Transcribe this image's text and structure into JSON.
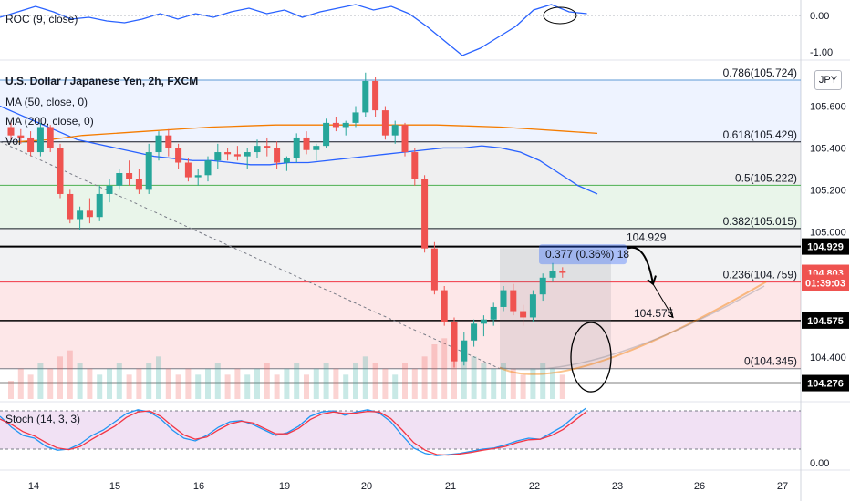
{
  "header": {
    "symbol_title": "U.S. Dollar / Japanese Yen, 2h, FXCM",
    "currency_button": "JPY"
  },
  "legends": {
    "roc": "ROC (9, close)",
    "ma50": "MA (50, close, 0)",
    "ma200": "MA (200, close, 0)",
    "vol": "Vol",
    "stoch": "Stoch (14, 3, 3)"
  },
  "colors": {
    "up": "#26a69a",
    "down": "#ef5350",
    "ma50": "#2962ff",
    "ma200": "#f57c00",
    "stoch_k": "#2196f3",
    "stoch_d": "#f23645",
    "fib_786": "#5c9ad6",
    "fib_618": "#131722",
    "fib_5": "#4caf50",
    "fib_382": "#131722",
    "fib_236": "#f23645",
    "fib_0": "#787b86"
  },
  "chart_data": [
    {
      "type": "line",
      "title": "ROC (9, close)",
      "y_ticks": [
        "0.00",
        "-1.00"
      ]
    },
    {
      "type": "candlestick",
      "title": "U.S. Dollar / Japanese Yen, 2h, FXCM",
      "ylim": [
        104.2,
        105.82
      ],
      "y_ticks": [
        "105.600",
        "105.400",
        "105.200",
        "105.000",
        "104.400"
      ],
      "x_ticks": [
        "14",
        "15",
        "16",
        "19",
        "20",
        "21",
        "22",
        "23",
        "26",
        "27"
      ],
      "fib_levels": [
        {
          "ratio": "0.786",
          "price": 105.724,
          "label": "0.786(105.724)"
        },
        {
          "ratio": "0.618",
          "price": 105.429,
          "label": "0.618(105.429)"
        },
        {
          "ratio": "0.5",
          "price": 105.222,
          "label": "0.5(105.222)"
        },
        {
          "ratio": "0.382",
          "price": 105.015,
          "label": "0.382(105.015)"
        },
        {
          "ratio": "0.236",
          "price": 104.759,
          "label": "0.236(104.759)"
        },
        {
          "ratio": "0",
          "price": 104.345,
          "label": "0(104.345)"
        }
      ],
      "horizontal_lines": [
        104.929,
        104.575,
        104.276
      ],
      "annotations": [
        {
          "text": "104.929",
          "price": 104.929
        },
        {
          "text": "104.575",
          "price": 104.575
        },
        {
          "text": "0.377 (0.36%) 18",
          "price": 104.83
        }
      ],
      "price_tags": [
        {
          "text": "104.929",
          "price": 104.929,
          "color": "#000000"
        },
        {
          "text": "104.803",
          "price": 104.803,
          "color": "#ef5350"
        },
        {
          "text": "01:39:03",
          "price": 104.755,
          "color": "#ef5350"
        },
        {
          "text": "104.575",
          "price": 104.575,
          "color": "#000000"
        },
        {
          "text": "104.276",
          "price": 104.276,
          "color": "#000000"
        }
      ],
      "candles": [
        [
          105.5,
          105.53,
          105.44,
          105.46
        ],
        [
          105.46,
          105.49,
          105.42,
          105.45
        ],
        [
          105.45,
          105.48,
          105.36,
          105.38
        ],
        [
          105.38,
          105.52,
          105.36,
          105.5
        ],
        [
          105.5,
          105.51,
          105.38,
          105.4
        ],
        [
          105.4,
          105.42,
          105.16,
          105.18
        ],
        [
          105.18,
          105.2,
          105.04,
          105.06
        ],
        [
          105.06,
          105.12,
          105.01,
          105.1
        ],
        [
          105.1,
          105.16,
          105.04,
          105.07
        ],
        [
          105.07,
          105.22,
          105.05,
          105.18
        ],
        [
          105.18,
          105.25,
          105.14,
          105.22
        ],
        [
          105.22,
          105.3,
          105.2,
          105.28
        ],
        [
          105.28,
          105.34,
          105.22,
          105.25
        ],
        [
          105.25,
          105.3,
          105.18,
          105.2
        ],
        [
          105.2,
          105.42,
          105.18,
          105.38
        ],
        [
          105.38,
          105.48,
          105.34,
          105.46
        ],
        [
          105.46,
          105.49,
          105.36,
          105.4
        ],
        [
          105.4,
          105.42,
          105.3,
          105.33
        ],
        [
          105.33,
          105.35,
          105.24,
          105.26
        ],
        [
          105.26,
          105.3,
          105.22,
          105.27
        ],
        [
          105.27,
          105.36,
          105.24,
          105.34
        ],
        [
          105.34,
          105.42,
          105.3,
          105.38
        ],
        [
          105.38,
          105.4,
          105.34,
          105.37
        ],
        [
          105.37,
          105.41,
          105.34,
          105.36
        ],
        [
          105.36,
          105.4,
          105.3,
          105.38
        ],
        [
          105.38,
          105.44,
          105.35,
          105.41
        ],
        [
          105.41,
          105.45,
          105.36,
          105.4
        ],
        [
          105.4,
          105.43,
          105.3,
          105.33
        ],
        [
          105.33,
          105.36,
          105.29,
          105.35
        ],
        [
          105.35,
          105.47,
          105.33,
          105.45
        ],
        [
          105.45,
          105.48,
          105.37,
          105.39
        ],
        [
          105.39,
          105.42,
          105.34,
          105.41
        ],
        [
          105.41,
          105.54,
          105.4,
          105.52
        ],
        [
          105.52,
          105.55,
          105.48,
          105.5
        ],
        [
          105.5,
          105.53,
          105.46,
          105.52
        ],
        [
          105.52,
          105.6,
          105.5,
          105.57
        ],
        [
          105.57,
          105.76,
          105.55,
          105.72
        ],
        [
          105.72,
          105.74,
          105.55,
          105.58
        ],
        [
          105.58,
          105.6,
          105.44,
          105.46
        ],
        [
          105.46,
          105.53,
          105.42,
          105.51
        ],
        [
          105.51,
          105.52,
          105.36,
          105.38
        ],
        [
          105.38,
          105.4,
          105.22,
          105.25
        ],
        [
          105.25,
          105.27,
          104.9,
          104.92
        ],
        [
          104.92,
          104.95,
          104.7,
          104.72
        ],
        [
          104.72,
          104.74,
          104.55,
          104.57
        ],
        [
          104.57,
          104.59,
          104.35,
          104.38
        ],
        [
          104.38,
          104.52,
          104.36,
          104.48
        ],
        [
          104.48,
          104.58,
          104.45,
          104.56
        ],
        [
          104.56,
          104.6,
          104.5,
          104.58
        ],
        [
          104.58,
          104.66,
          104.55,
          104.64
        ],
        [
          104.64,
          104.74,
          104.62,
          104.72
        ],
        [
          104.72,
          104.75,
          104.6,
          104.62
        ],
        [
          104.62,
          104.65,
          104.55,
          104.59
        ],
        [
          104.59,
          104.72,
          104.57,
          104.7
        ],
        [
          104.7,
          104.8,
          104.67,
          104.78
        ],
        [
          104.78,
          104.85,
          104.76,
          104.81
        ],
        [
          104.81,
          104.83,
          104.78,
          104.803
        ]
      ],
      "ma50": [
        105.6,
        105.56,
        105.52,
        105.48,
        105.44,
        105.42,
        105.4,
        105.38,
        105.36,
        105.35,
        105.34,
        105.34,
        105.33,
        105.32,
        105.32,
        105.33,
        105.33,
        105.34,
        105.35,
        105.36,
        105.37,
        105.38,
        105.39,
        105.4,
        105.4,
        105.41,
        105.4,
        105.38,
        105.34,
        105.28,
        105.22,
        105.18
      ],
      "ma200": [
        105.43,
        105.44,
        105.46,
        105.47,
        105.48,
        105.49,
        105.5,
        105.505,
        105.51,
        105.51,
        105.51,
        105.51,
        105.51,
        105.51,
        105.505,
        105.5,
        105.49,
        105.48,
        105.47
      ],
      "volume": [
        3,
        5,
        4,
        6,
        5,
        7,
        8,
        6,
        5,
        4,
        5,
        6,
        4,
        5,
        6,
        7,
        5,
        4,
        5,
        4,
        5,
        6,
        4,
        5,
        4,
        5,
        6,
        4,
        5,
        6,
        4,
        5,
        6,
        5,
        4,
        6,
        7,
        6,
        5,
        4,
        6,
        5,
        7,
        9,
        10,
        12,
        8,
        7,
        6,
        5,
        6,
        5,
        4,
        5,
        6,
        5,
        4
      ]
    },
    {
      "type": "line",
      "title": "Stoch (14, 3, 3)",
      "y_ticks": [
        "0.00"
      ],
      "series": [
        {
          "values": [
            80,
            60,
            45,
            40,
            25,
            18,
            20,
            30,
            45,
            55,
            70,
            85,
            92,
            88,
            75,
            55,
            40,
            35,
            45,
            60,
            70,
            72,
            65,
            55,
            45,
            50,
            62,
            80,
            88,
            90,
            82,
            88,
            92,
            86,
            70,
            45,
            22,
            12,
            8,
            10,
            12,
            16,
            20,
            22,
            28,
            35,
            40,
            38,
            50,
            62,
            80,
            95
          ]
        },
        {
          "values": [
            75,
            65,
            52,
            44,
            32,
            22,
            19,
            25,
            38,
            50,
            62,
            78,
            88,
            90,
            80,
            62,
            46,
            38,
            42,
            55,
            66,
            71,
            68,
            58,
            48,
            48,
            58,
            74,
            84,
            88,
            85,
            86,
            89,
            88,
            76,
            55,
            32,
            18,
            10,
            9,
            11,
            14,
            18,
            21,
            25,
            32,
            37,
            38,
            45,
            56,
            72,
            88
          ]
        }
      ]
    }
  ]
}
